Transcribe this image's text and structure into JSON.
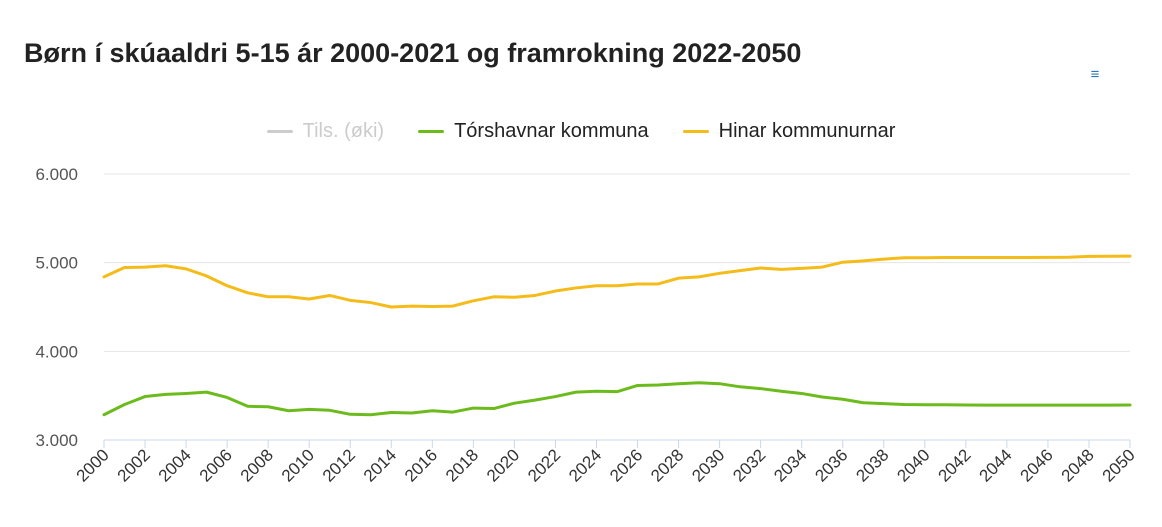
{
  "title": "Børn í skúaaldri 5-15 ár 2000-2021 og framrokning 2022-2050",
  "menu_icon": "hamburger-menu-icon",
  "colors": {
    "total": "#cccccc",
    "torshavn": "#6cbb1d",
    "others": "#f5bb19",
    "grid": "#e6e6e6",
    "axis": "#ccd6eb",
    "menu": "#2a7ab8"
  },
  "legend": [
    {
      "label": "Tils. (øki)",
      "hidden": true
    },
    {
      "label": "Tórshavnar kommuna",
      "hidden": false
    },
    {
      "label": "Hinar kommunurnar",
      "hidden": false
    }
  ],
  "chart_data": {
    "type": "line",
    "title": "Børn í skúaaldri 5-15 ár 2000-2021 og framrokning 2022-2050",
    "xlabel": "",
    "ylabel": "",
    "ylim": [
      3000,
      6000
    ],
    "yticks": [
      3000,
      4000,
      5000,
      6000
    ],
    "ytick_labels": [
      "3.000",
      "4.000",
      "5.000",
      "6.000"
    ],
    "xlim": [
      2000,
      2050
    ],
    "xticks": [
      2000,
      2002,
      2004,
      2006,
      2008,
      2010,
      2012,
      2014,
      2016,
      2018,
      2020,
      2022,
      2024,
      2026,
      2028,
      2030,
      2032,
      2034,
      2036,
      2038,
      2040,
      2042,
      2044,
      2046,
      2048,
      2050
    ],
    "grid": true,
    "legend_position": "top-center",
    "x": [
      2000,
      2001,
      2002,
      2003,
      2004,
      2005,
      2006,
      2007,
      2008,
      2009,
      2010,
      2011,
      2012,
      2013,
      2014,
      2015,
      2016,
      2017,
      2018,
      2019,
      2020,
      2021,
      2022,
      2023,
      2024,
      2025,
      2026,
      2027,
      2028,
      2029,
      2030,
      2031,
      2032,
      2033,
      2034,
      2035,
      2036,
      2037,
      2038,
      2039,
      2040,
      2041,
      2042,
      2043,
      2044,
      2045,
      2046,
      2047,
      2048,
      2049,
      2050
    ],
    "series": [
      {
        "name": "Tórshavnar kommuna",
        "color": "#6cbb1d",
        "values": [
          3285,
          3400,
          3490,
          3515,
          3525,
          3540,
          3480,
          3380,
          3375,
          3330,
          3345,
          3335,
          3290,
          3285,
          3310,
          3305,
          3330,
          3315,
          3360,
          3355,
          3415,
          3450,
          3490,
          3540,
          3550,
          3545,
          3615,
          3620,
          3635,
          3645,
          3635,
          3600,
          3580,
          3550,
          3525,
          3485,
          3460,
          3420,
          3410,
          3400,
          3398,
          3397,
          3395,
          3394,
          3393,
          3394,
          3393,
          3393,
          3393,
          3393,
          3395
        ]
      },
      {
        "name": "Hinar kommunurnar",
        "color": "#f5bb19",
        "values": [
          4840,
          4945,
          4950,
          4965,
          4930,
          4850,
          4740,
          4660,
          4615,
          4615,
          4590,
          4630,
          4575,
          4550,
          4500,
          4510,
          4505,
          4510,
          4570,
          4615,
          4610,
          4630,
          4680,
          4715,
          4740,
          4740,
          4760,
          4760,
          4825,
          4840,
          4880,
          4910,
          4940,
          4925,
          4935,
          4950,
          5005,
          5020,
          5040,
          5055,
          5055,
          5058,
          5058,
          5058,
          5058,
          5059,
          5060,
          5061,
          5071,
          5072,
          5074
        ]
      }
    ]
  }
}
